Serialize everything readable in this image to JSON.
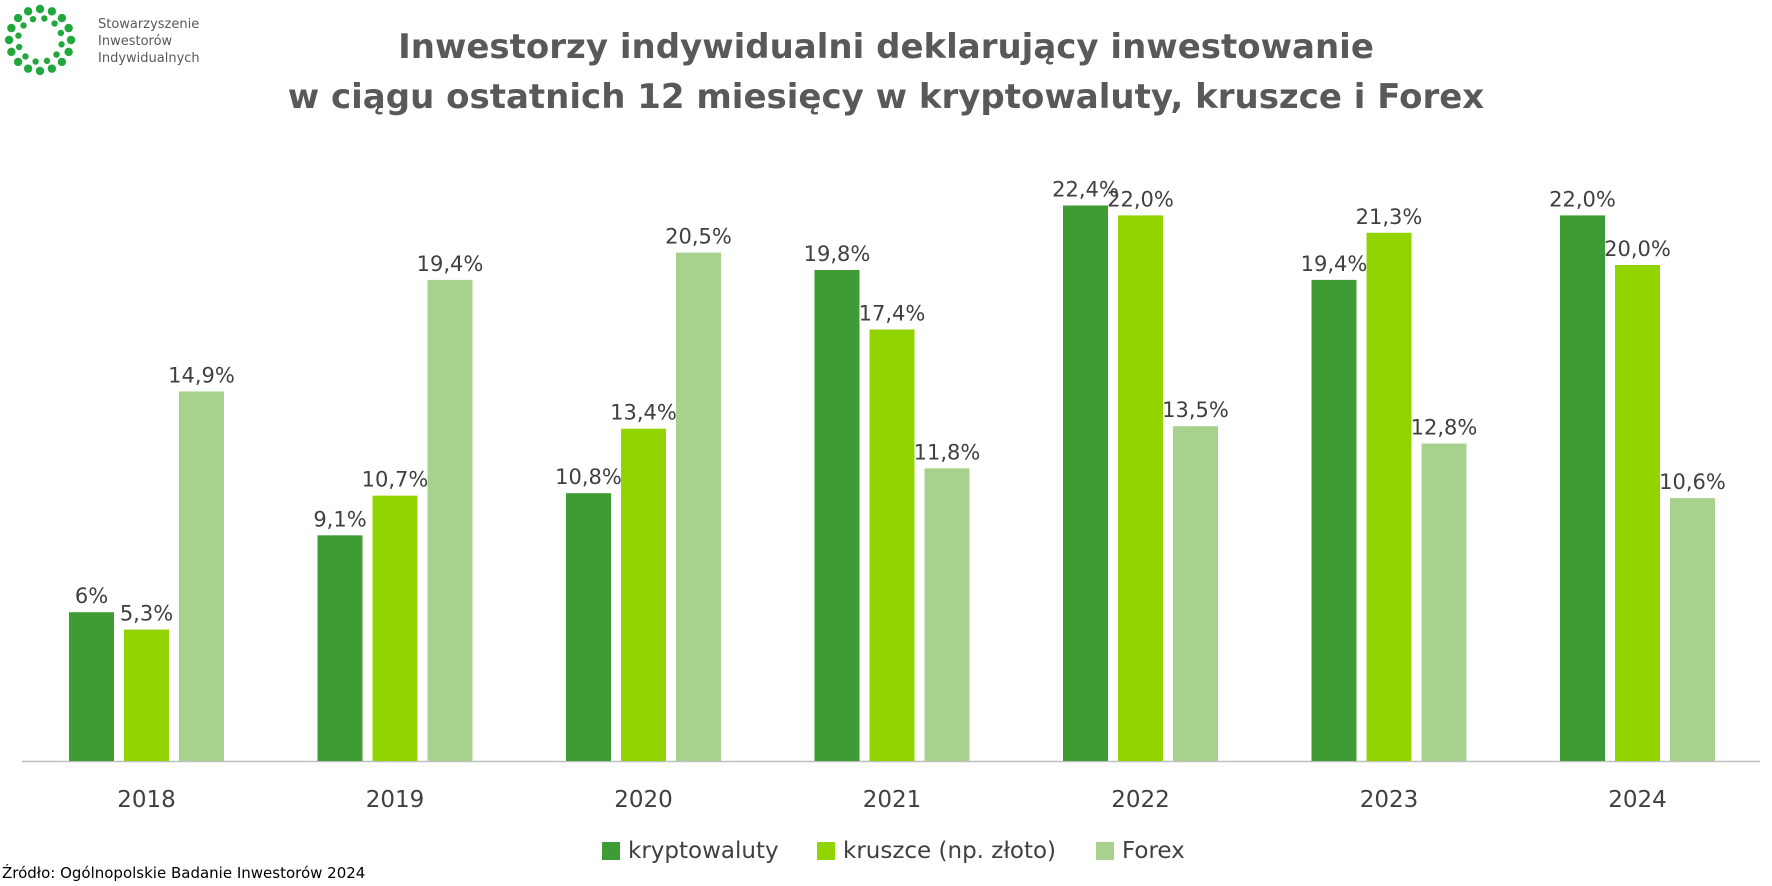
{
  "logo": {
    "lines": [
      "Stowarzyszenie",
      "Inwestorów",
      "Indywidualnych"
    ],
    "color": "#22a73c"
  },
  "title_lines": [
    "Inwestorzy indywidualni deklarujący inwestowanie",
    "w ciągu ostatnich 12 miesięcy w kryptowaluty, kruszce i Forex"
  ],
  "source": "Źródło: Ogólnopolskie Badanie Inwestorów 2024",
  "chart_data": {
    "type": "bar",
    "title": "Inwestorzy indywidualni deklarujący inwestowanie w ciągu ostatnich 12 miesięcy w kryptowaluty, kruszce i Forex",
    "categories": [
      "2018",
      "2019",
      "2020",
      "2021",
      "2022",
      "2023",
      "2024"
    ],
    "series": [
      {
        "name": "kryptowaluty",
        "color": "#3f9c35",
        "values": [
          6,
          9.1,
          10.8,
          19.8,
          22.4,
          19.4,
          22.0
        ],
        "labels": [
          "6%",
          "9,1%",
          "10,8%",
          "19,8%",
          "22,4%",
          "19,4%",
          "22,0%"
        ]
      },
      {
        "name": "kruszce (np. złoto)",
        "color": "#92d400",
        "values": [
          5.3,
          10.7,
          13.4,
          17.4,
          22.0,
          21.3,
          20.0
        ],
        "labels": [
          "5,3%",
          "10,7%",
          "13,4%",
          "17,4%",
          "22,0%",
          "21,3%",
          "20,0%"
        ]
      },
      {
        "name": "Forex",
        "color": "#a9d18e",
        "values": [
          14.9,
          19.4,
          20.5,
          11.8,
          13.5,
          12.8,
          10.6
        ],
        "labels": [
          "14,9%",
          "19,4%",
          "20,5%",
          "11,8%",
          "13,5%",
          "12,8%",
          "10,6%"
        ]
      }
    ],
    "ylim": [
      0,
      25
    ],
    "grid": false,
    "legend_position": "bottom"
  }
}
